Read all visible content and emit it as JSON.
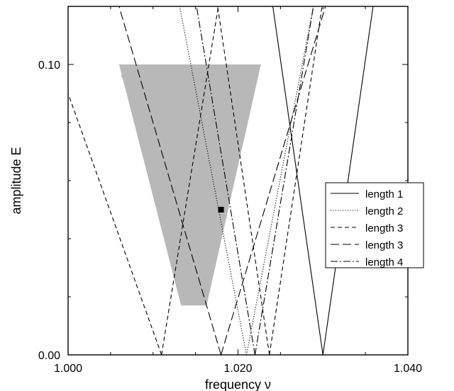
{
  "chart_data": {
    "type": "line",
    "xlabel": "frequency ν",
    "ylabel": "amplitude E",
    "xlim": [
      1.0,
      1.04
    ],
    "ylim": [
      0.0,
      0.12
    ],
    "x_ticks": [
      "1.000",
      "1.020",
      "1.040"
    ],
    "x_tick_values": [
      1.0,
      1.02,
      1.04
    ],
    "y_ticks": [
      "0.00",
      "0.10"
    ],
    "y_tick_values": [
      0.0,
      0.1
    ],
    "grid": false,
    "legend_position": "right",
    "region": {
      "color": "#b8b8b8",
      "top_y": 0.1,
      "bottom_y": 0.017,
      "top_x_range": [
        1.006,
        1.0227
      ],
      "bottom_x_range": [
        1.0133,
        1.0163
      ]
    },
    "marked_point": {
      "x": 1.018,
      "y": 0.05
    },
    "series": [
      {
        "name": "length 1",
        "style": "solid",
        "lines": [
          {
            "x": [
              1.03,
              1.024
            ],
            "y": [
              0.0,
              0.122
            ]
          },
          {
            "x": [
              1.03,
              1.036
            ],
            "y": [
              0.0,
              0.122
            ]
          }
        ]
      },
      {
        "name": "length 2",
        "style": "dotted",
        "lines": [
          {
            "x": [
              1.021,
              1.013
            ],
            "y": [
              0.0,
              0.122
            ]
          },
          {
            "x": [
              1.021,
              1.029
            ],
            "y": [
              0.0,
              0.122
            ]
          }
        ]
      },
      {
        "name": "length 3",
        "style": "dashed",
        "lines": [
          {
            "x": [
              1.011,
              1.0
            ],
            "y": [
              0.0,
              0.09
            ]
          },
          {
            "x": [
              1.011,
              1.0178
            ],
            "y": [
              0.0,
              0.122
            ]
          },
          {
            "x": [
              1.0237,
              1.0175
            ],
            "y": [
              0.0,
              0.122
            ]
          },
          {
            "x": [
              1.0237,
              1.03
            ],
            "y": [
              0.0,
              0.122
            ]
          }
        ]
      },
      {
        "name": "length 3",
        "style": "longdash",
        "lines": [
          {
            "x": [
              1.018,
              1.0058
            ],
            "y": [
              0.0,
              0.122
            ]
          },
          {
            "x": [
              1.018,
              1.0305
            ],
            "y": [
              0.0,
              0.122
            ]
          }
        ]
      },
      {
        "name": "length 4",
        "style": "dashdot",
        "lines": [
          {
            "x": [
              1.022,
              1.015
            ],
            "y": [
              0.0,
              0.122
            ]
          },
          {
            "x": [
              1.022,
              1.029
            ],
            "y": [
              0.0,
              0.122
            ]
          }
        ]
      }
    ]
  }
}
